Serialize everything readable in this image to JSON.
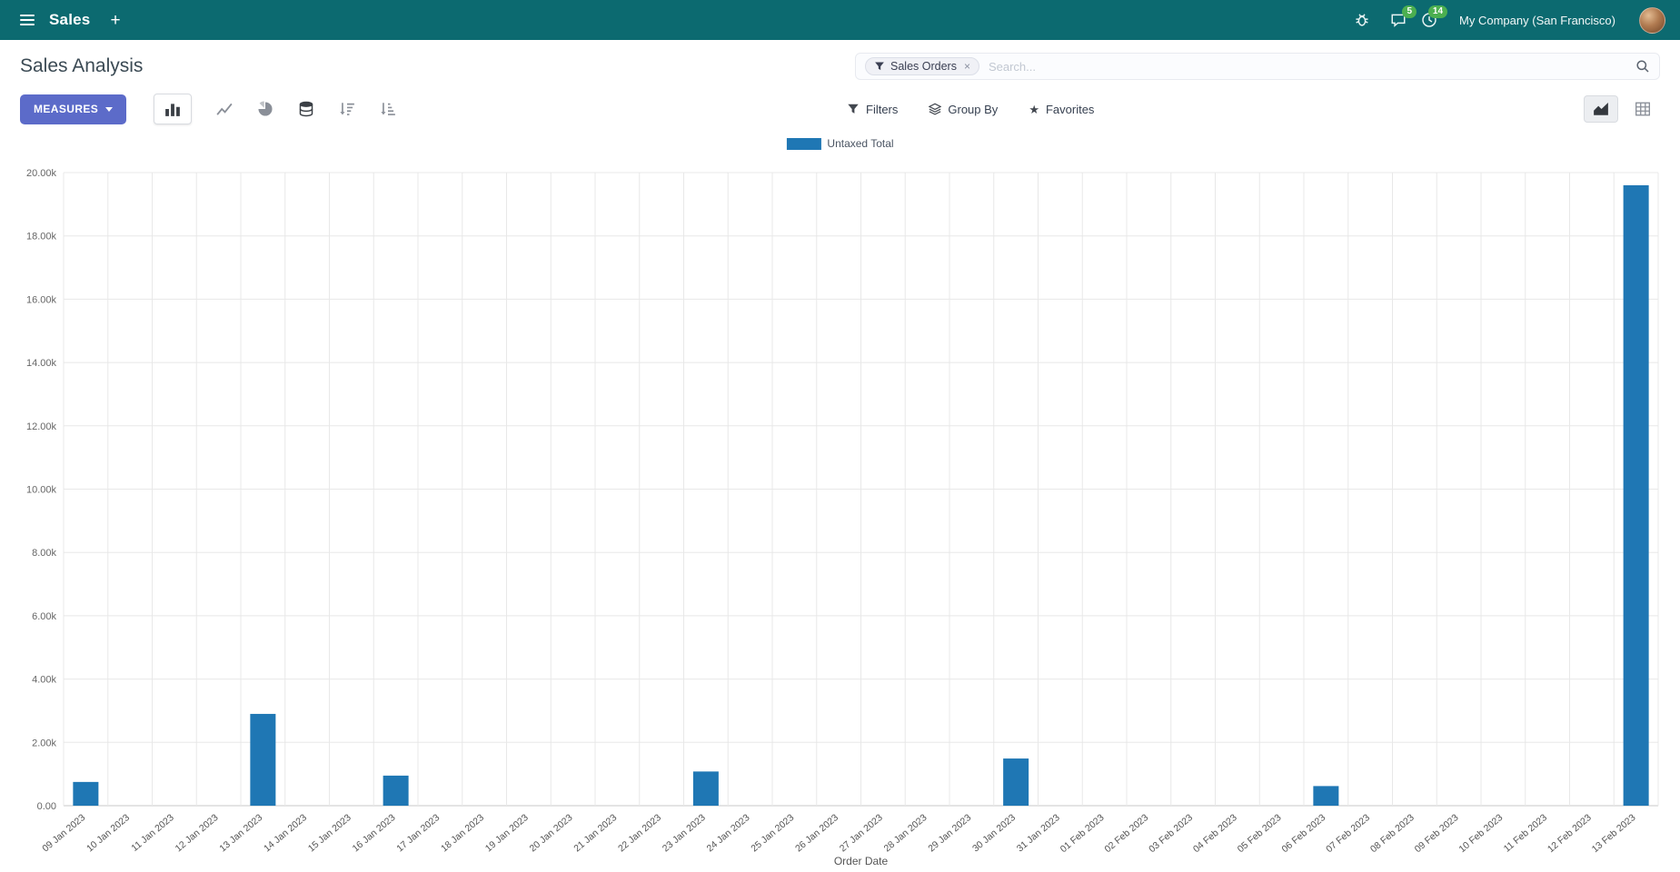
{
  "navbar": {
    "app_name": "Sales",
    "company": "My Company (San Francisco)",
    "messages_badge": "5",
    "activities_badge": "14"
  },
  "control_panel": {
    "title": "Sales Analysis",
    "measures_label": "MEASURES",
    "search": {
      "facet": "Sales Orders",
      "facet_remove": "×",
      "placeholder": "Search..."
    },
    "filters_label": "Filters",
    "group_by_label": "Group By",
    "favorites_label": "Favorites"
  },
  "icons": {
    "plus": "+",
    "star": "★",
    "hamburger": "menu-bars",
    "bug": "debug-bug",
    "chat": "messages-bubble",
    "clock": "activities-clock",
    "magnifier": "search",
    "funnel": "filter-funnel",
    "layers": "group-by-layers",
    "bar_chart": "bar-chart-view",
    "line_chart": "line-chart-view",
    "pie_chart": "pie-chart-view",
    "stacked": "stacked-toggle",
    "sort_desc": "sort-descending",
    "sort_asc": "sort-ascending",
    "area_chart": "graph-view-switch",
    "pivot": "pivot-view-switch"
  },
  "colors": {
    "navbar_bg": "#0c6a70",
    "primary_button": "#5c6bc9",
    "badge_green": "#4caf50",
    "bar_color": "#1f77b4"
  },
  "chart_data": {
    "type": "bar",
    "title": "",
    "xlabel": "Order Date",
    "ylabel": "",
    "ylim": [
      0,
      20000
    ],
    "grid": true,
    "legend_position": "top-center",
    "ytick_labels": [
      "0.00",
      "2.00k",
      "4.00k",
      "6.00k",
      "8.00k",
      "10.00k",
      "12.00k",
      "14.00k",
      "16.00k",
      "18.00k",
      "20.00k"
    ],
    "categories": [
      "09 Jan 2023",
      "10 Jan 2023",
      "11 Jan 2023",
      "12 Jan 2023",
      "13 Jan 2023",
      "14 Jan 2023",
      "15 Jan 2023",
      "16 Jan 2023",
      "17 Jan 2023",
      "18 Jan 2023",
      "19 Jan 2023",
      "20 Jan 2023",
      "21 Jan 2023",
      "22 Jan 2023",
      "23 Jan 2023",
      "24 Jan 2023",
      "25 Jan 2023",
      "26 Jan 2023",
      "27 Jan 2023",
      "28 Jan 2023",
      "29 Jan 2023",
      "30 Jan 2023",
      "31 Jan 2023",
      "01 Feb 2023",
      "02 Feb 2023",
      "03 Feb 2023",
      "04 Feb 2023",
      "05 Feb 2023",
      "06 Feb 2023",
      "07 Feb 2023",
      "08 Feb 2023",
      "09 Feb 2023",
      "10 Feb 2023",
      "11 Feb 2023",
      "12 Feb 2023",
      "13 Feb 2023"
    ],
    "series": [
      {
        "name": "Untaxed Total",
        "color": "#1f77b4",
        "values": [
          750,
          0,
          0,
          0,
          2900,
          0,
          0,
          950,
          0,
          0,
          0,
          0,
          0,
          0,
          1080,
          0,
          0,
          0,
          0,
          0,
          0,
          1490,
          0,
          0,
          0,
          0,
          0,
          0,
          620,
          0,
          0,
          0,
          0,
          0,
          0,
          19600
        ]
      }
    ]
  }
}
